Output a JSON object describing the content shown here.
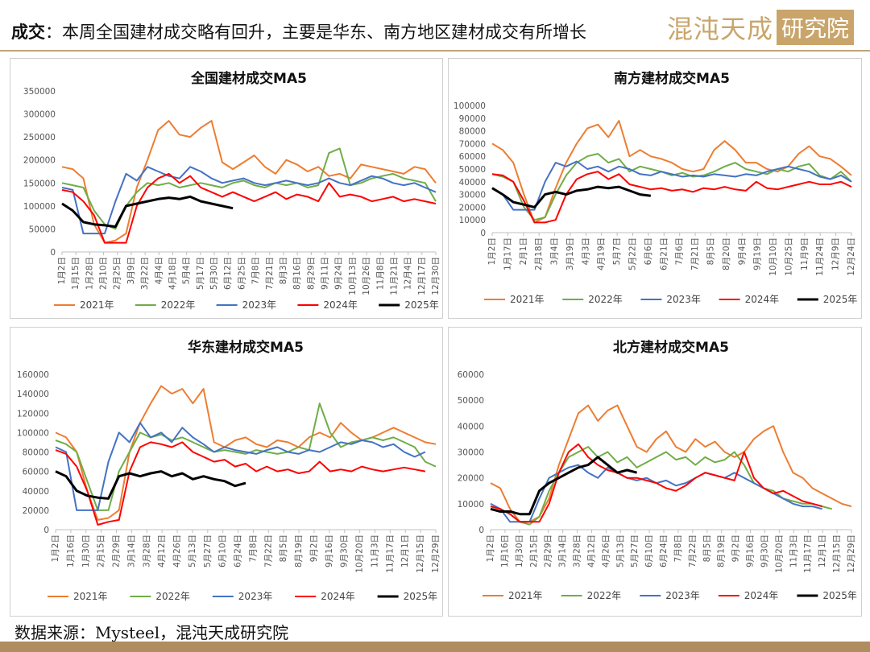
{
  "header": {
    "lead": "成交",
    "title": "：本周全国建材成交略有回升，主要是华东、南方地区建材成交有所增长",
    "logo_text": "混沌天成",
    "logo_seal": "研究院"
  },
  "source": "数据来源：Mysteel，混沌天成研究院",
  "colors": {
    "2021年": "#ed7d31",
    "2022年": "#70ad47",
    "2023年": "#4472c4",
    "2024年": "#ff0000",
    "2025年": "#000000"
  },
  "chart_data": [
    {
      "type": "line",
      "title": "全国建材成交MA5",
      "ylim": [
        0,
        350000
      ],
      "yticks": [
        0,
        50000,
        100000,
        150000,
        200000,
        250000,
        300000,
        350000
      ],
      "xticks": [
        "1月2日",
        "1月15日",
        "1月28日",
        "2月10日",
        "2月25日",
        "3月9日",
        "3月22日",
        "4月4日",
        "4月18日",
        "5月4日",
        "5月17日",
        "5月30日",
        "6月12日",
        "6月25日",
        "7月8日",
        "7月21日",
        "8月3日",
        "8月16日",
        "8月29日",
        "9月11日",
        "9月24日",
        "10月13日",
        "10月26日",
        "11月8日",
        "11月21日",
        "12月4日",
        "12月17日",
        "12月30日"
      ],
      "legend": [
        "2021年",
        "2022年",
        "2023年",
        "2024年",
        "2025年"
      ],
      "series": [
        {
          "name": "2021年",
          "values": [
            185000,
            180000,
            160000,
            60000,
            20000,
            25000,
            40000,
            140000,
            200000,
            265000,
            285000,
            255000,
            250000,
            270000,
            285000,
            195000,
            180000,
            195000,
            210000,
            185000,
            170000,
            200000,
            190000,
            175000,
            185000,
            165000,
            170000,
            160000,
            190000,
            185000,
            180000,
            175000,
            170000,
            185000,
            180000,
            150000
          ]
        },
        {
          "name": "2022年",
          "values": [
            150000,
            145000,
            140000,
            90000,
            60000,
            50000,
            100000,
            130000,
            150000,
            145000,
            150000,
            140000,
            145000,
            150000,
            145000,
            140000,
            150000,
            155000,
            145000,
            140000,
            150000,
            145000,
            150000,
            140000,
            145000,
            215000,
            225000,
            145000,
            150000,
            160000,
            165000,
            170000,
            160000,
            155000,
            150000,
            110000
          ]
        },
        {
          "name": "2023年",
          "values": [
            140000,
            135000,
            40000,
            40000,
            40000,
            110000,
            170000,
            155000,
            185000,
            175000,
            165000,
            160000,
            185000,
            175000,
            160000,
            150000,
            155000,
            160000,
            150000,
            145000,
            150000,
            155000,
            150000,
            145000,
            150000,
            160000,
            150000,
            145000,
            155000,
            165000,
            160000,
            150000,
            145000,
            150000,
            140000,
            130000
          ]
        },
        {
          "name": "2024年",
          "values": [
            135000,
            130000,
            110000,
            80000,
            20000,
            20000,
            20000,
            100000,
            140000,
            160000,
            170000,
            150000,
            165000,
            140000,
            130000,
            120000,
            130000,
            120000,
            110000,
            120000,
            130000,
            115000,
            125000,
            120000,
            110000,
            150000,
            120000,
            125000,
            120000,
            110000,
            115000,
            120000,
            110000,
            115000,
            110000,
            105000
          ]
        },
        {
          "name": "2025年",
          "values": [
            105000,
            90000,
            65000,
            60000,
            58000,
            55000,
            100000,
            105000,
            110000,
            115000,
            118000,
            115000,
            120000,
            110000,
            105000,
            100000,
            95000
          ]
        }
      ]
    },
    {
      "type": "line",
      "title": "南方建材成交MA5",
      "ylim": [
        0,
        100000
      ],
      "yticks": [
        0,
        10000,
        20000,
        30000,
        40000,
        50000,
        60000,
        70000,
        80000,
        90000,
        100000
      ],
      "xticks": [
        "1月2日",
        "1月17日",
        "2月1日",
        "2月18日",
        "3月4日",
        "3月19日",
        "4月3日",
        "4月19日",
        "5月7日",
        "5月22日",
        "6月6日",
        "6月21日",
        "7月6日",
        "7月21日",
        "8月5日",
        "8月20日",
        "9月4日",
        "9月19日",
        "10月10日",
        "10月25日",
        "11月9日",
        "11月24日",
        "12月9日",
        "12月24日"
      ],
      "legend": [
        "2021年",
        "2022年",
        "2023年",
        "2024年",
        "2025年"
      ],
      "series": [
        {
          "name": "2021年",
          "values": [
            70000,
            65000,
            55000,
            30000,
            8000,
            12000,
            35000,
            55000,
            70000,
            82000,
            85000,
            75000,
            88000,
            60000,
            65000,
            60000,
            58000,
            55000,
            50000,
            48000,
            50000,
            65000,
            72000,
            65000,
            55000,
            55000,
            50000,
            48000,
            52000,
            62000,
            68000,
            60000,
            58000,
            52000,
            45000
          ]
        },
        {
          "name": "2022年",
          "values": [
            46000,
            44000,
            40000,
            20000,
            10000,
            12000,
            30000,
            45000,
            55000,
            60000,
            62000,
            55000,
            58000,
            48000,
            52000,
            50000,
            48000,
            45000,
            47000,
            44000,
            45000,
            48000,
            52000,
            55000,
            50000,
            48000,
            46000,
            50000,
            48000,
            52000,
            54000,
            45000,
            42000,
            48000,
            40000
          ]
        },
        {
          "name": "2023年",
          "values": [
            35000,
            30000,
            18000,
            18000,
            18000,
            40000,
            55000,
            52000,
            56000,
            50000,
            52000,
            48000,
            52000,
            50000,
            46000,
            45000,
            48000,
            46000,
            44000,
            45000,
            44000,
            46000,
            45000,
            44000,
            46000,
            45000,
            48000,
            50000,
            52000,
            50000,
            48000,
            44000,
            42000,
            45000,
            40000
          ]
        },
        {
          "name": "2024年",
          "values": [
            46000,
            45000,
            40000,
            25000,
            8000,
            8000,
            10000,
            30000,
            42000,
            46000,
            48000,
            42000,
            46000,
            38000,
            36000,
            34000,
            35000,
            33000,
            34000,
            32000,
            35000,
            34000,
            36000,
            34000,
            33000,
            40000,
            35000,
            34000,
            36000,
            38000,
            40000,
            38000,
            38000,
            40000,
            36000
          ]
        },
        {
          "name": "2025年",
          "values": [
            35000,
            30000,
            24000,
            22000,
            20000,
            30000,
            32000,
            30000,
            33000,
            34000,
            36000,
            35000,
            36000,
            33000,
            30000,
            29000
          ]
        }
      ]
    },
    {
      "type": "line",
      "title": "华东建材成交MA5",
      "ylim": [
        0,
        160000
      ],
      "yticks": [
        0,
        20000,
        40000,
        60000,
        80000,
        100000,
        120000,
        140000,
        160000
      ],
      "xticks": [
        "1月2日",
        "1月16日",
        "1月30日",
        "2月15日",
        "2月29日",
        "3月14日",
        "3月28日",
        "4月12日",
        "4月26日",
        "5月13日",
        "5月27日",
        "6月10日",
        "6月24日",
        "7月8日",
        "7月22日",
        "8月5日",
        "8月19日",
        "9月2日",
        "9月16日",
        "9月30日",
        "10月20日",
        "11月3日",
        "11月17日",
        "12月1日",
        "12月15日",
        "12月29日"
      ],
      "legend": [
        "2021年",
        "2022年",
        "2023年",
        "2024年",
        "2025年"
      ],
      "series": [
        {
          "name": "2021年",
          "values": [
            100000,
            95000,
            80000,
            40000,
            10000,
            12000,
            20000,
            80000,
            110000,
            130000,
            148000,
            140000,
            145000,
            130000,
            145000,
            90000,
            85000,
            92000,
            95000,
            88000,
            85000,
            92000,
            90000,
            85000,
            95000,
            100000,
            95000,
            110000,
            100000,
            92000,
            95000,
            100000,
            105000,
            100000,
            95000,
            90000,
            88000
          ]
        },
        {
          "name": "2022年",
          "values": [
            92000,
            88000,
            80000,
            50000,
            20000,
            20000,
            60000,
            80000,
            100000,
            95000,
            98000,
            92000,
            95000,
            90000,
            85000,
            80000,
            82000,
            80000,
            78000,
            82000,
            80000,
            78000,
            80000,
            85000,
            82000,
            130000,
            100000,
            85000,
            90000,
            92000,
            95000,
            92000,
            95000,
            90000,
            85000,
            70000,
            65000
          ]
        },
        {
          "name": "2023年",
          "values": [
            85000,
            80000,
            20000,
            20000,
            20000,
            70000,
            100000,
            90000,
            110000,
            95000,
            100000,
            90000,
            105000,
            95000,
            88000,
            80000,
            85000,
            82000,
            80000,
            78000,
            82000,
            85000,
            80000,
            78000,
            82000,
            80000,
            85000,
            90000,
            88000,
            92000,
            90000,
            85000,
            88000,
            80000,
            75000,
            80000
          ]
        },
        {
          "name": "2024年",
          "values": [
            82000,
            78000,
            65000,
            40000,
            5000,
            8000,
            10000,
            60000,
            85000,
            90000,
            88000,
            85000,
            90000,
            80000,
            75000,
            70000,
            72000,
            65000,
            68000,
            60000,
            65000,
            60000,
            62000,
            58000,
            60000,
            70000,
            60000,
            62000,
            60000,
            65000,
            62000,
            60000,
            62000,
            64000,
            62000,
            60000
          ]
        },
        {
          "name": "2025年",
          "values": [
            60000,
            55000,
            40000,
            35000,
            33000,
            32000,
            55000,
            58000,
            55000,
            58000,
            60000,
            55000,
            58000,
            52000,
            55000,
            52000,
            50000,
            45000,
            48000
          ]
        }
      ]
    },
    {
      "type": "line",
      "title": "北方建材成交MA5",
      "ylim": [
        0,
        60000
      ],
      "yticks": [
        0,
        10000,
        20000,
        30000,
        40000,
        50000,
        60000
      ],
      "xticks": [
        "1月2日",
        "1月16日",
        "1月30日",
        "2月15日",
        "2月29日",
        "3月14日",
        "3月28日",
        "4月12日",
        "4月26日",
        "5月13日",
        "5月27日",
        "6月10日",
        "6月24日",
        "7月8日",
        "7月22日",
        "8月5日",
        "8月19日",
        "9月2日",
        "9月16日",
        "9月30日",
        "10月20日",
        "11月3日",
        "11月17日",
        "12月1日",
        "12月15日",
        "12月29日"
      ],
      "legend": [
        "2021年",
        "2022年",
        "2023年",
        "2024年",
        "2025年"
      ],
      "series": [
        {
          "name": "2021年",
          "values": [
            18000,
            16000,
            8000,
            3000,
            3000,
            5000,
            12000,
            25000,
            35000,
            45000,
            48000,
            42000,
            46000,
            48000,
            40000,
            32000,
            30000,
            35000,
            38000,
            32000,
            30000,
            35000,
            32000,
            34000,
            30000,
            28000,
            30000,
            35000,
            38000,
            40000,
            30000,
            22000,
            20000,
            16000,
            14000,
            12000,
            10000,
            9000
          ]
        },
        {
          "name": "2022年",
          "values": [
            9000,
            8000,
            6000,
            3000,
            2000,
            5000,
            15000,
            22000,
            28000,
            30000,
            32000,
            28000,
            30000,
            26000,
            28000,
            24000,
            26000,
            28000,
            30000,
            27000,
            28000,
            25000,
            28000,
            26000,
            27000,
            30000,
            25000,
            18000,
            16000,
            15000,
            12000,
            11000,
            10000,
            10000,
            9000,
            8000
          ]
        },
        {
          "name": "2023年",
          "values": [
            10000,
            8000,
            3000,
            3000,
            3000,
            12000,
            20000,
            22000,
            24000,
            25000,
            22000,
            20000,
            24000,
            22000,
            20000,
            19000,
            20000,
            18000,
            19000,
            17000,
            18000,
            20000,
            22000,
            21000,
            20000,
            22000,
            20000,
            18000,
            16000,
            14000,
            12000,
            10000,
            9000,
            9000,
            8000
          ]
        },
        {
          "name": "2024年",
          "values": [
            9000,
            8000,
            6000,
            3000,
            3000,
            3000,
            10000,
            22000,
            30000,
            33000,
            28000,
            25000,
            23000,
            22000,
            20000,
            20000,
            19000,
            18000,
            16000,
            15000,
            17000,
            20000,
            22000,
            21000,
            20000,
            19000,
            30000,
            20000,
            16000,
            14000,
            15000,
            13000,
            11000,
            10000,
            9000
          ]
        },
        {
          "name": "2025年",
          "values": [
            8000,
            7000,
            7000,
            6000,
            6000,
            15000,
            18000,
            20000,
            22000,
            24000,
            25000,
            28000,
            25000,
            22000,
            23000,
            22000
          ]
        }
      ]
    }
  ]
}
